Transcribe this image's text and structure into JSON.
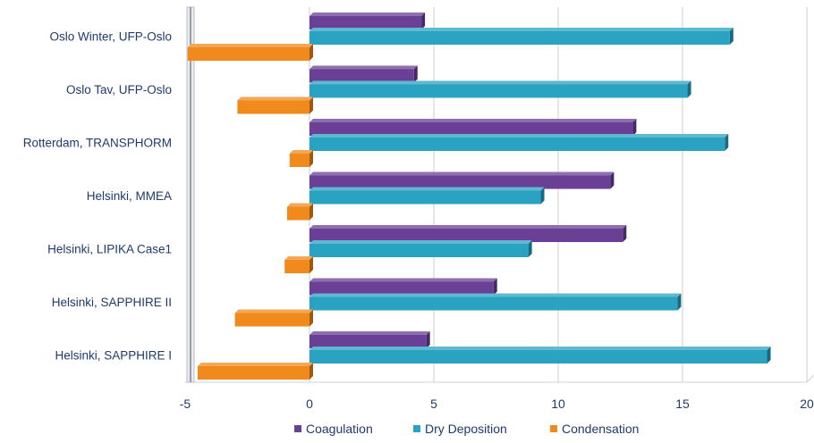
{
  "chart_data": {
    "type": "bar",
    "orientation": "horizontal",
    "categories": [
      "Oslo Winter, UFP-Oslo",
      "Oslo Tav, UFP-Oslo",
      "Rotterdam, TRANSPHORM",
      "Helsinki, MMEA",
      "Helsinki, LIPIKA Case1",
      "Helsinki, SAPPHIRE II",
      "Helsinki, SAPPHIRE I"
    ],
    "series": [
      {
        "name": "Coagulation",
        "color": "#6a3f96",
        "values": [
          4.5,
          4.2,
          13.0,
          12.1,
          12.6,
          7.4,
          4.7
        ]
      },
      {
        "name": "Dry Deposition",
        "color": "#2aa2c2",
        "values": [
          16.9,
          15.2,
          16.7,
          9.3,
          8.8,
          14.8,
          18.4
        ]
      },
      {
        "name": "Condensation",
        "color": "#f08a1c",
        "values": [
          -4.9,
          -2.9,
          -0.8,
          -0.9,
          -1.0,
          -3.0,
          -4.5
        ]
      }
    ],
    "xlim": [
      -5,
      20
    ],
    "xticks": [
      "-5",
      "0",
      "5",
      "10",
      "15",
      "20"
    ],
    "grid": true,
    "legend": "bottom",
    "style": "3d"
  }
}
